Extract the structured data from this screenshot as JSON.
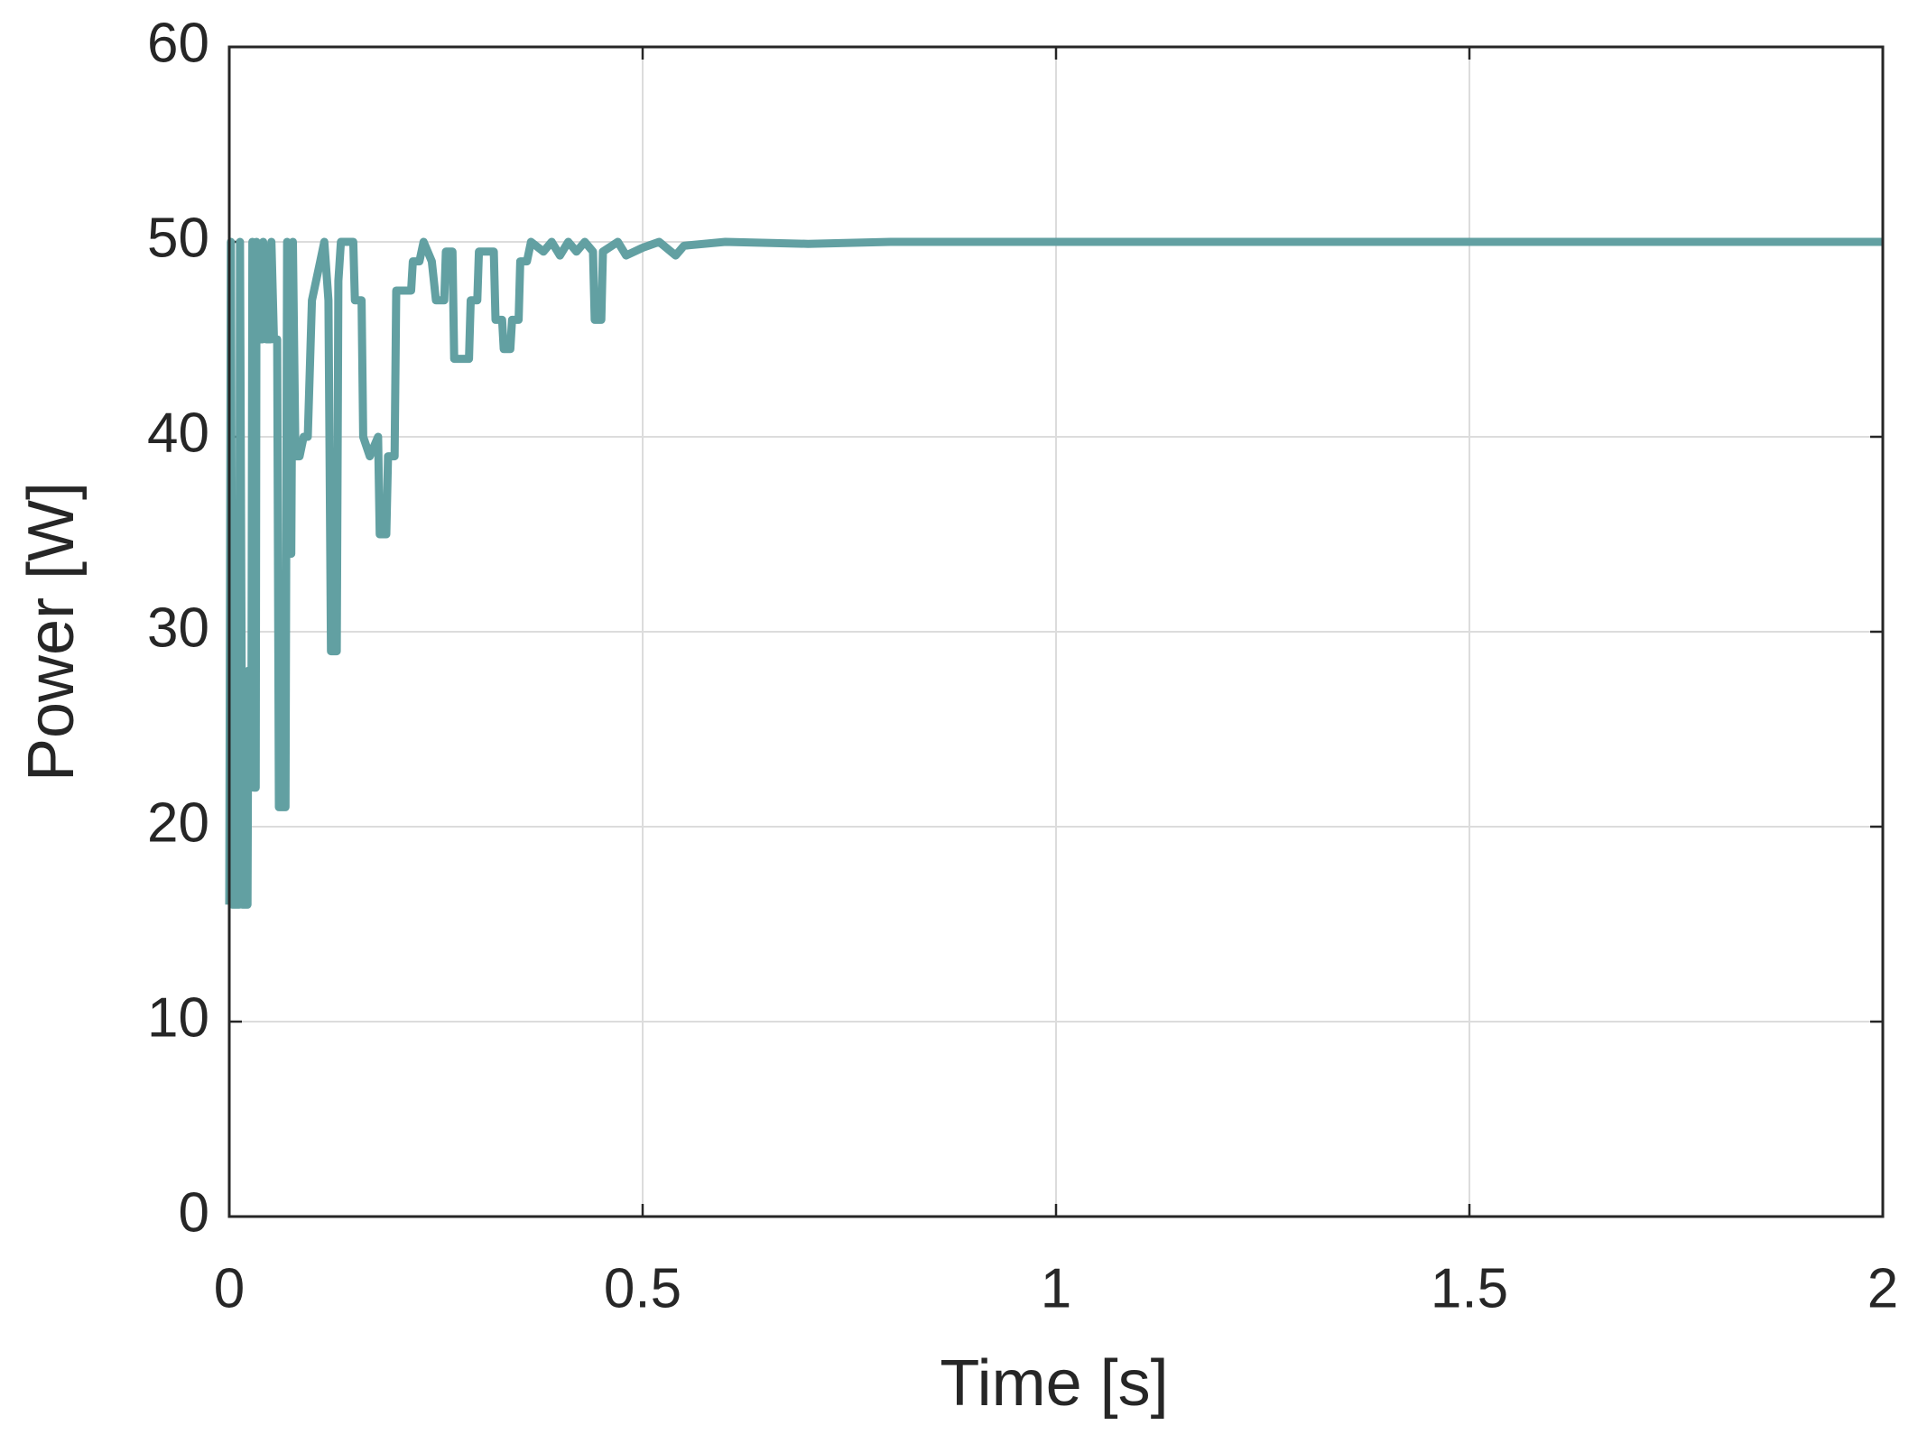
{
  "chart_data": {
    "type": "line",
    "xlabel": "Time [s]",
    "ylabel": "Power [W]",
    "x": [
      0,
      0.002,
      0.004,
      0.012,
      0.013,
      0.016,
      0.022,
      0.023,
      0.027,
      0.028,
      0.03,
      0.032,
      0.033,
      0.036,
      0.04,
      0.041,
      0.045,
      0.05,
      0.051,
      0.054,
      0.058,
      0.06,
      0.068,
      0.07,
      0.072,
      0.075,
      0.077,
      0.08,
      0.085,
      0.09,
      0.095,
      0.1,
      0.11,
      0.115,
      0.12,
      0.123,
      0.13,
      0.132,
      0.135,
      0.15,
      0.152,
      0.16,
      0.162,
      0.17,
      0.18,
      0.182,
      0.19,
      0.192,
      0.2,
      0.202,
      0.22,
      0.222,
      0.23,
      0.235,
      0.245,
      0.25,
      0.26,
      0.262,
      0.27,
      0.272,
      0.29,
      0.292,
      0.3,
      0.302,
      0.32,
      0.322,
      0.33,
      0.332,
      0.34,
      0.342,
      0.35,
      0.352,
      0.36,
      0.365,
      0.38,
      0.39,
      0.4,
      0.41,
      0.42,
      0.43,
      0.44,
      0.442,
      0.45,
      0.452,
      0.47,
      0.48,
      0.5,
      0.52,
      0.54,
      0.55,
      0.6,
      0.7,
      0.8,
      2
    ],
    "values": [
      16,
      50,
      16,
      16,
      50,
      16,
      16,
      28,
      28,
      50,
      22,
      22,
      50,
      45,
      45,
      50,
      45,
      45,
      50,
      45,
      45,
      21,
      21,
      50,
      34,
      34,
      50,
      39,
      39,
      40,
      40,
      47,
      49,
      50,
      47,
      29,
      29,
      48,
      50,
      50,
      47,
      47,
      40,
      39,
      40,
      35,
      35,
      39,
      39,
      47.5,
      47.5,
      49,
      49,
      50,
      49,
      47,
      47,
      49.5,
      49.5,
      44,
      44,
      47,
      47,
      49.5,
      49.5,
      46,
      46,
      44.5,
      44.5,
      46,
      46,
      49,
      49,
      50,
      49.5,
      50,
      49.3,
      50,
      49.5,
      50,
      49.5,
      46,
      46,
      49.5,
      50,
      49.3,
      49.7,
      50,
      49.3,
      49.8,
      50,
      49.9,
      50,
      50
    ],
    "color": "#62a0a2",
    "xlim": [
      0,
      2
    ],
    "xticks": [
      0,
      0.5,
      1,
      1.5,
      2
    ],
    "ylim": [
      0,
      60
    ],
    "yticks": [
      0,
      10,
      20,
      30,
      40,
      50,
      60
    ],
    "grid": true
  }
}
